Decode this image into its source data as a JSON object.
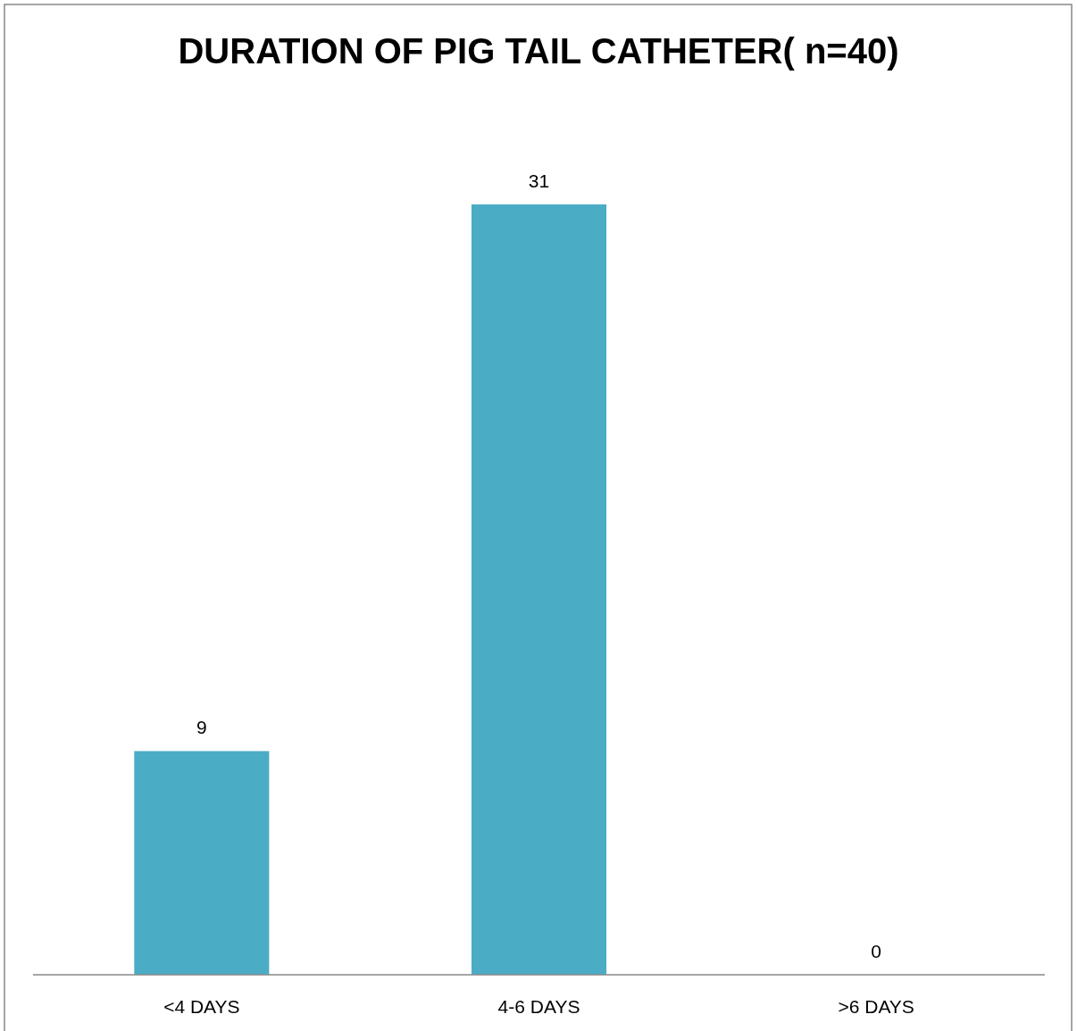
{
  "chart_data": {
    "type": "bar",
    "title": "DURATION OF PIG TAIL CATHETER( n=40)",
    "categories": [
      "<4 DAYS",
      "4-6 DAYS",
      ">6 DAYS"
    ],
    "values": [
      9,
      31,
      0
    ],
    "color": "#4bacc6",
    "data_labels": true
  }
}
